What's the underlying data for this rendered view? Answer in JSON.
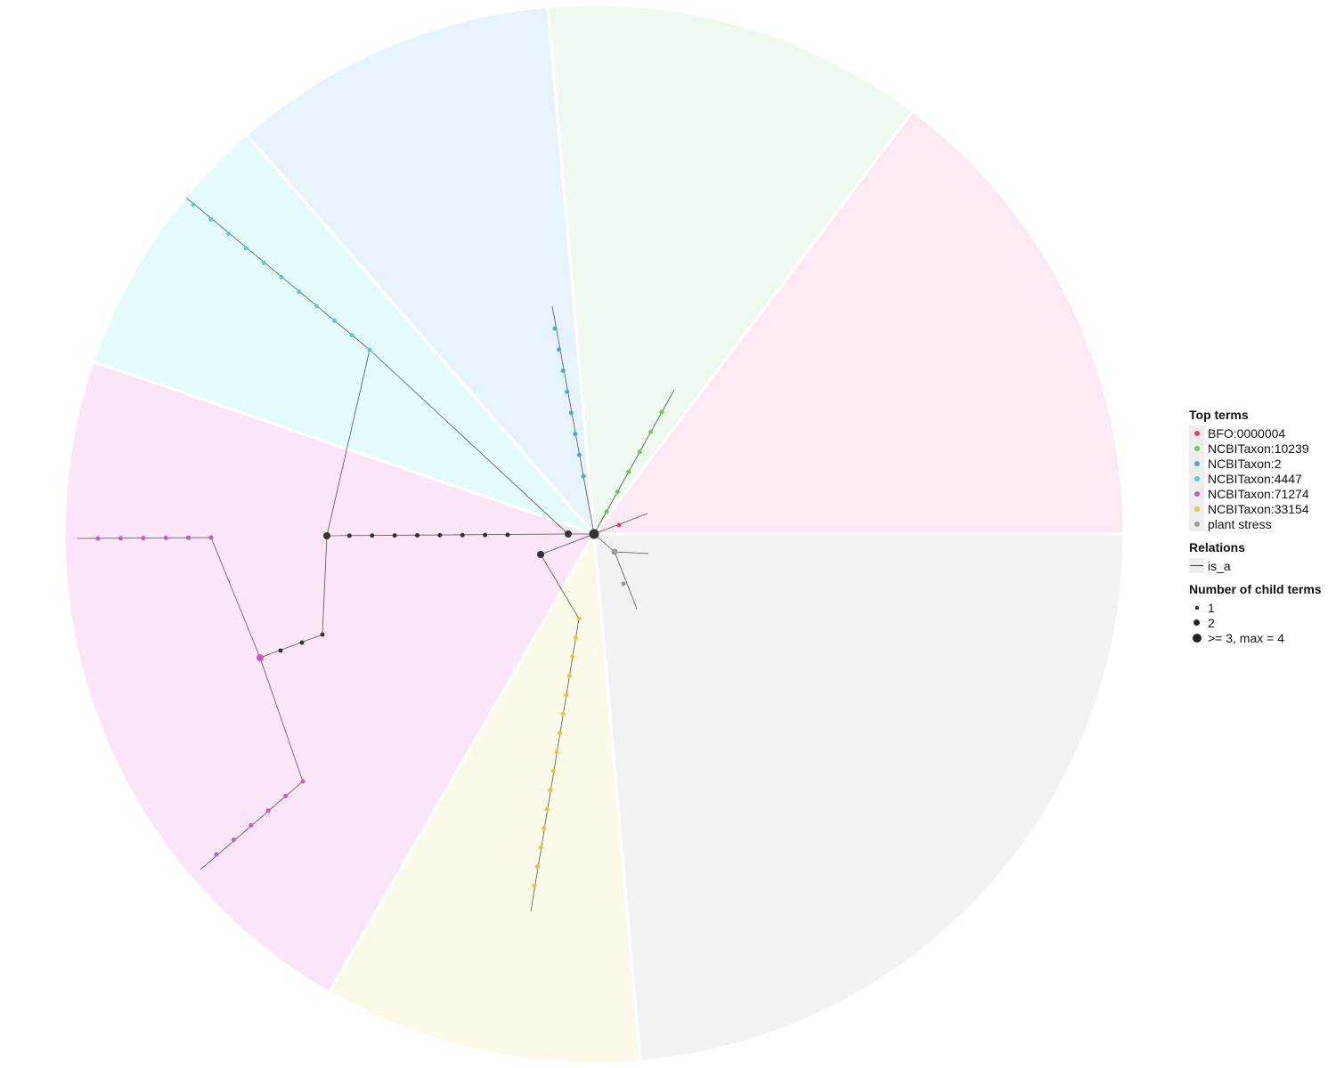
{
  "legend": {
    "top_terms": {
      "title": "Top terms",
      "items": [
        {
          "label": "BFO:0000004",
          "color": "#d6436e"
        },
        {
          "label": "NCBITaxon:10239",
          "color": "#6cc75a"
        },
        {
          "label": "NCBITaxon:2",
          "color": "#5b9fd1"
        },
        {
          "label": "NCBITaxon:4447",
          "color": "#57c9d9"
        },
        {
          "label": "NCBITaxon:71274",
          "color": "#c95cc0"
        },
        {
          "label": "NCBITaxon:33154",
          "color": "#efc13f"
        },
        {
          "label": "plant stress",
          "color": "#999999"
        }
      ]
    },
    "relations": {
      "title": "Relations",
      "items": [
        {
          "label": "is_a",
          "icon": "line"
        }
      ]
    },
    "child_terms": {
      "title": "Number of child terms",
      "items": [
        {
          "label": "1",
          "size": 1
        },
        {
          "label": "2",
          "size": 2
        },
        {
          "label": ">= 3, max = 4",
          "size": 3
        }
      ]
    }
  },
  "sector_colors": {
    "BFO:0000004": "#fbeaf3",
    "NCBITaxon:10239": "#eefaef",
    "NCBITaxon:2": "#e5f4fb",
    "NCBITaxon:4447": "#e5fafa",
    "NCBITaxon:71274": "#fbe5f8",
    "NCBITaxon:33154": "#fcf9e8",
    "plant stress": "#f2f2f2"
  }
}
